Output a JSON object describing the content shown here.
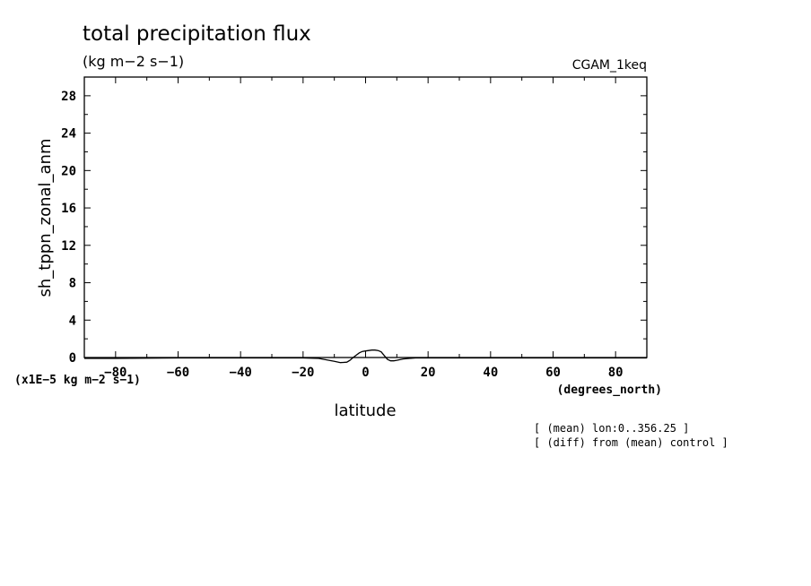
{
  "chart_data": {
    "type": "line",
    "title": "total precipitation flux",
    "subtitle": "(kg m−2 s−1)",
    "case_label": "CGAM_1keq",
    "xlabel": "latitude",
    "x_units_label": "(degrees_north)",
    "ylabel": "sh_tppn_zonal_anm",
    "y_scale_label": "(x1E−5 kg m−2 s−1)",
    "xlim": [
      -90,
      90
    ],
    "ylim": [
      0,
      30
    ],
    "x_ticks": [
      -80,
      -60,
      -40,
      -20,
      0,
      20,
      40,
      60,
      80
    ],
    "x_tick_labels": [
      "−80",
      "−60",
      "−40",
      "−20",
      "0",
      "20",
      "40",
      "60",
      "80"
    ],
    "y_ticks": [
      0,
      4,
      8,
      12,
      16,
      20,
      24,
      28
    ],
    "y_tick_labels": [
      "0",
      "4",
      "8",
      "12",
      "16",
      "20",
      "24",
      "28"
    ],
    "grid": false,
    "series": [
      {
        "x": [
          -90,
          -80,
          -60,
          -40,
          -20,
          -15,
          -10,
          -8,
          -6,
          -5,
          -4,
          -2,
          -1,
          0,
          1,
          2,
          3,
          4,
          5,
          6,
          7,
          8,
          9,
          10,
          12,
          14,
          16,
          20,
          30,
          40,
          60,
          80,
          90
        ],
        "values": [
          -0.1,
          -0.1,
          -0.05,
          -0.05,
          -0.05,
          -0.1,
          -0.4,
          -0.55,
          -0.5,
          -0.3,
          0.0,
          0.5,
          0.65,
          0.7,
          0.75,
          0.8,
          0.8,
          0.75,
          0.6,
          0.2,
          -0.2,
          -0.35,
          -0.35,
          -0.3,
          -0.15,
          -0.1,
          -0.05,
          -0.05,
          -0.05,
          -0.05,
          -0.05,
          -0.05,
          -0.05
        ]
      }
    ],
    "footnotes": [
      "[ (mean) lon:0..356.25 ]",
      "[ (diff) from (mean) control ]"
    ]
  }
}
